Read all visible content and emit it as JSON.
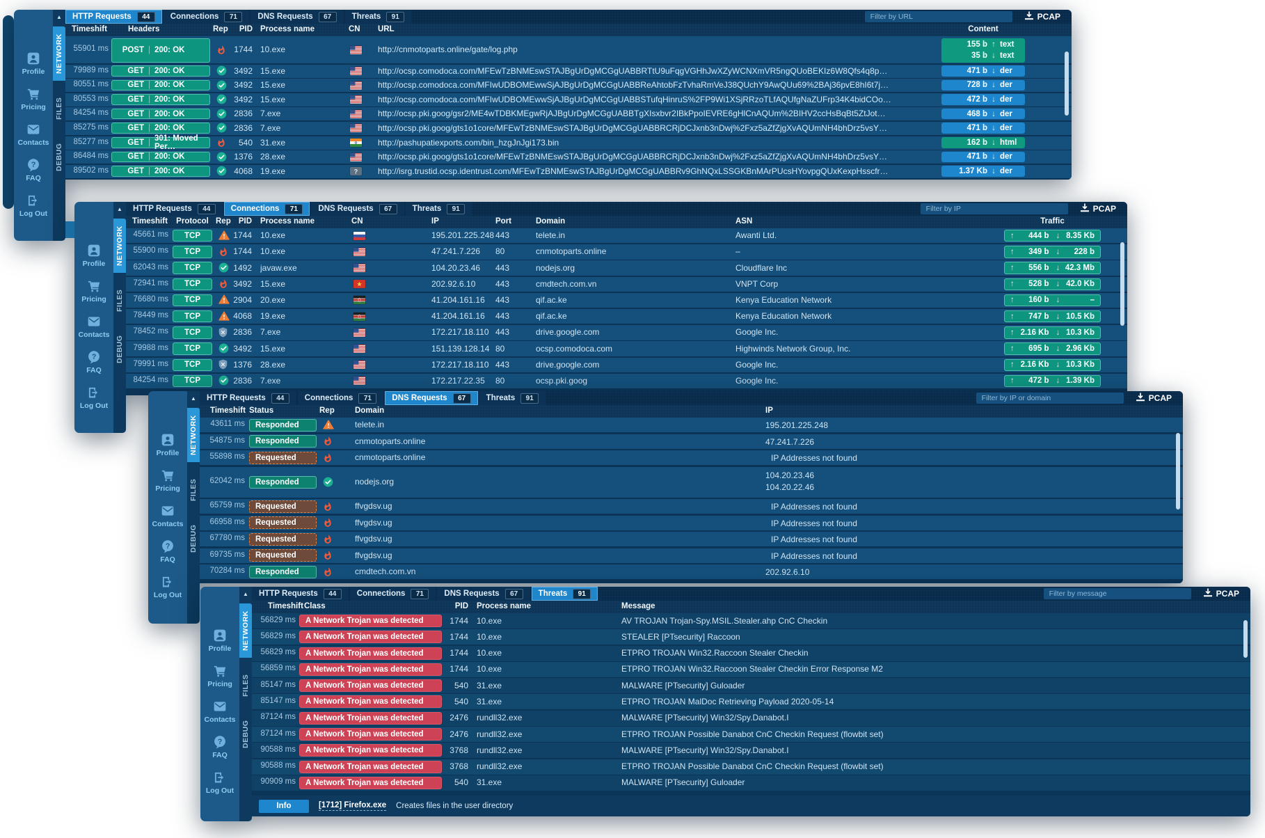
{
  "colors": {
    "accent": "#1f86cc",
    "teal": "#0e9580",
    "red": "#ce4255",
    "fire": "#f25a3c",
    "warn": "#ef7d36",
    "ok": "#1bb093",
    "shield": "#7e9fbb"
  },
  "sidebar": {
    "items": [
      {
        "id": "profile",
        "label": "Profile",
        "icon": "user-icon"
      },
      {
        "id": "pricing",
        "label": "Pricing",
        "icon": "cart-icon"
      },
      {
        "id": "contacts",
        "label": "Contacts",
        "icon": "mail-icon"
      },
      {
        "id": "faq",
        "label": "FAQ",
        "icon": "question-icon"
      },
      {
        "id": "logout",
        "label": "Log Out",
        "icon": "logout-icon"
      }
    ],
    "sections": [
      "NETWORK",
      "FILES",
      "DEBUG"
    ]
  },
  "tabs": [
    {
      "label": "HTTP Requests",
      "count": "44"
    },
    {
      "label": "Connections",
      "count": "71"
    },
    {
      "label": "DNS Requests",
      "count": "67"
    },
    {
      "label": "Threats",
      "count": "91"
    }
  ],
  "pcap_label": "PCAP",
  "panels": [
    {
      "name": "http-requests",
      "active_tab": 0,
      "filter_placeholder": "Filter by URL",
      "columns": [
        "Timeshift",
        "Headers",
        "Rep",
        "PID",
        "Process name",
        "CN",
        "URL",
        "Content"
      ],
      "rows": [
        {
          "ts": "55901 ms",
          "method": "POST",
          "status": "200: OK",
          "rep": "fire",
          "pid": "1744",
          "proc": "10.exe",
          "cn": "us",
          "url": "http://cnmotoparts.online/gate/log.php",
          "content": {
            "color": "green",
            "parts": [
              {
                "size": "155 b",
                "dir": "up",
                "type": "text"
              },
              {
                "size": "35 b",
                "dir": "down",
                "type": "text"
              }
            ]
          }
        },
        {
          "ts": "79989 ms",
          "method": "GET",
          "status": "200: OK",
          "rep": "ok",
          "pid": "3492",
          "proc": "15.exe",
          "cn": "us",
          "url": "http://ocsp.comodoca.com/MFEwTzBNMEswSTAJBgUrDgMCGgUABBRTtU9uFqgVGHhJwXZyWCNXmVR5ngQUoBEKIz6W8Qfs4q8p…",
          "content": {
            "color": "blue",
            "parts": [
              {
                "size": "471 b",
                "dir": "down",
                "type": "der"
              }
            ]
          }
        },
        {
          "ts": "80551 ms",
          "method": "GET",
          "status": "200: OK",
          "rep": "ok",
          "pid": "3492",
          "proc": "15.exe",
          "cn": "us",
          "url": "http://ocsp.comodoca.com/MFIwUDBOMEwwSjAJBgUrDgMCGgUABBReAhtobFzTvhaRmVeJ38QUchY9AwQUu69%2BAj36pvE8hI6t7j…",
          "content": {
            "color": "blue",
            "parts": [
              {
                "size": "728 b",
                "dir": "down",
                "type": "der"
              }
            ]
          }
        },
        {
          "ts": "80553 ms",
          "method": "GET",
          "status": "200: OK",
          "rep": "ok",
          "pid": "3492",
          "proc": "15.exe",
          "cn": "us",
          "url": "http://ocsp.comodoca.com/MFIwUDBOMEwwSjAJBgUrDgMCGgUABBSTufqHinruS%2FP9Wi1XSjRRzoTLfAQUfgNaZUFrp34K4bidCOo…",
          "content": {
            "color": "blue",
            "parts": [
              {
                "size": "472 b",
                "dir": "down",
                "type": "der"
              }
            ]
          }
        },
        {
          "ts": "84254 ms",
          "method": "GET",
          "status": "200: OK",
          "rep": "ok",
          "pid": "2836",
          "proc": "7.exe",
          "cn": "us",
          "url": "http://ocsp.pki.goog/gsr2/ME4wTDBKMEgwRjAJBgUrDgMCGgUABBTgXIsxbvr2IBkPpoIEVRE6gHlCnAQUm%2BIHV2ccHsBqBt5ZtJot…",
          "content": {
            "color": "blue",
            "parts": [
              {
                "size": "468 b",
                "dir": "down",
                "type": "der"
              }
            ]
          }
        },
        {
          "ts": "85275 ms",
          "method": "GET",
          "status": "200: OK",
          "rep": "ok",
          "pid": "2836",
          "proc": "7.exe",
          "cn": "us",
          "url": "http://ocsp.pki.goog/gts1o1core/MFEwTzBNMEswSTAJBgUrDgMCGgUABBRCRjDCJxnb3nDwj%2Fxz5aZfZjgXvAQUmNH4bhDrz5vsY…",
          "content": {
            "color": "blue",
            "parts": [
              {
                "size": "471 b",
                "dir": "down",
                "type": "der"
              }
            ]
          }
        },
        {
          "ts": "85277 ms",
          "method": "GET",
          "status": "301: Moved Per…",
          "rep": "fire",
          "pid": "540",
          "proc": "31.exe",
          "cn": "in",
          "url": "http://pashupatiexports.com/bin_hzgJnJgi173.bin",
          "content": {
            "color": "green",
            "parts": [
              {
                "size": "162 b",
                "dir": "down",
                "type": "html"
              }
            ]
          }
        },
        {
          "ts": "86484 ms",
          "method": "GET",
          "status": "200: OK",
          "rep": "ok",
          "pid": "1376",
          "proc": "28.exe",
          "cn": "us",
          "url": "http://ocsp.pki.goog/gts1o1core/MFEwTzBNMEswSTAJBgUrDgMCGgUABBRCRjDCJxnb3nDwj%2Fxz5aZfZjgXvAQUmNH4bhDrz5vsY…",
          "content": {
            "color": "blue",
            "parts": [
              {
                "size": "471 b",
                "dir": "down",
                "type": "der"
              }
            ]
          }
        },
        {
          "ts": "89502 ms",
          "method": "GET",
          "status": "200: OK",
          "rep": "ok",
          "pid": "4068",
          "proc": "19.exe",
          "cn": "unknown",
          "url": "http://isrg.trustid.ocsp.identrust.com/MFEwTzBNMEswSTAJBgUrDgMCGgUABBRv9GhNQxLSSGKBnMArPUcsHYovpgQUxKexpHsscfr…",
          "content": {
            "color": "blue",
            "parts": [
              {
                "size": "1.37 Kb",
                "dir": "down",
                "type": "der"
              }
            ]
          }
        }
      ]
    },
    {
      "name": "connections",
      "active_tab": 1,
      "filter_placeholder": "Filter by IP",
      "columns": [
        "Timeshift",
        "Protocol",
        "Rep",
        "PID",
        "Process name",
        "CN",
        "IP",
        "Port",
        "Domain",
        "ASN",
        "Traffic"
      ],
      "rows": [
        {
          "ts": "45661 ms",
          "proto": "TCP",
          "rep": "warn",
          "pid": "1744",
          "proc": "10.exe",
          "cn": "ru",
          "ip": "195.201.225.248",
          "port": "443",
          "domain": "telete.in",
          "asn": "Awanti Ltd.",
          "up": "444 b",
          "down": "8.35 Kb"
        },
        {
          "ts": "55900 ms",
          "proto": "TCP",
          "rep": "fire",
          "pid": "1744",
          "proc": "10.exe",
          "cn": "us",
          "ip": "47.241.7.226",
          "port": "80",
          "domain": "cnmotoparts.online",
          "asn": "–",
          "up": "349 b",
          "down": "228 b"
        },
        {
          "ts": "62043 ms",
          "proto": "TCP",
          "rep": "ok",
          "pid": "1492",
          "proc": "javaw.exe",
          "cn": "us",
          "ip": "104.20.23.46",
          "port": "443",
          "domain": "nodejs.org",
          "asn": "Cloudflare Inc",
          "up": "556 b",
          "down": "42.3 Mb"
        },
        {
          "ts": "72941 ms",
          "proto": "TCP",
          "rep": "fire",
          "pid": "3492",
          "proc": "15.exe",
          "cn": "vn",
          "ip": "202.92.6.10",
          "port": "443",
          "domain": "cmdtech.com.vn",
          "asn": "VNPT Corp",
          "up": "528 b",
          "down": "42.0 Kb"
        },
        {
          "ts": "76680 ms",
          "proto": "TCP",
          "rep": "warn",
          "pid": "2904",
          "proc": "20.exe",
          "cn": "ke",
          "ip": "41.204.161.16",
          "port": "443",
          "domain": "qif.ac.ke",
          "asn": "Kenya Education Network",
          "up": "160 b",
          "down": "–"
        },
        {
          "ts": "78449 ms",
          "proto": "TCP",
          "rep": "warn",
          "pid": "4068",
          "proc": "19.exe",
          "cn": "ke",
          "ip": "41.204.161.16",
          "port": "443",
          "domain": "qif.ac.ke",
          "asn": "Kenya Education Network",
          "up": "747 b",
          "down": "10.5 Kb"
        },
        {
          "ts": "78452 ms",
          "proto": "TCP",
          "rep": "shield",
          "pid": "2836",
          "proc": "7.exe",
          "cn": "us",
          "ip": "172.217.18.110",
          "port": "443",
          "domain": "drive.google.com",
          "asn": "Google Inc.",
          "up": "2.16 Kb",
          "down": "10.3 Kb"
        },
        {
          "ts": "79988 ms",
          "proto": "TCP",
          "rep": "ok",
          "pid": "3492",
          "proc": "15.exe",
          "cn": "us",
          "ip": "151.139.128.14",
          "port": "80",
          "domain": "ocsp.comodoca.com",
          "asn": "Highwinds Network Group, Inc.",
          "up": "695 b",
          "down": "2.96 Kb"
        },
        {
          "ts": "79991 ms",
          "proto": "TCP",
          "rep": "shield",
          "pid": "1376",
          "proc": "28.exe",
          "cn": "us",
          "ip": "172.217.18.110",
          "port": "443",
          "domain": "drive.google.com",
          "asn": "Google Inc.",
          "up": "2.16 Kb",
          "down": "10.3 Kb"
        },
        {
          "ts": "84254 ms",
          "proto": "TCP",
          "rep": "ok",
          "pid": "2836",
          "proc": "7.exe",
          "cn": "us",
          "ip": "172.217.22.35",
          "port": "80",
          "domain": "ocsp.pki.goog",
          "asn": "Google Inc.",
          "up": "472 b",
          "down": "1.39 Kb"
        }
      ]
    },
    {
      "name": "dns-requests",
      "active_tab": 2,
      "filter_placeholder": "Filter by IP or domain",
      "columns": [
        "Timeshift",
        "Status",
        "Rep",
        "Domain",
        "IP"
      ],
      "rows": [
        {
          "ts": "43611 ms",
          "status": "Responded",
          "rep": "warn",
          "domain": "telete.in",
          "ips": [
            "195.201.225.248"
          ],
          "nf": false
        },
        {
          "ts": "54875 ms",
          "status": "Responded",
          "rep": "fire",
          "domain": "cnmotoparts.online",
          "ips": [
            "47.241.7.226"
          ],
          "nf": false
        },
        {
          "ts": "55898 ms",
          "status": "Requested",
          "rep": "fire",
          "domain": "cnmotoparts.online",
          "ips": [
            "IP Addresses not found"
          ],
          "nf": true
        },
        {
          "ts": "62042 ms",
          "status": "Responded",
          "rep": "ok",
          "domain": "nodejs.org",
          "ips": [
            "104.20.23.46",
            "104.20.22.46"
          ],
          "nf": false
        },
        {
          "ts": "65759 ms",
          "status": "Requested",
          "rep": "fire",
          "domain": "ffvgdsv.ug",
          "ips": [
            "IP Addresses not found"
          ],
          "nf": true
        },
        {
          "ts": "66958 ms",
          "status": "Requested",
          "rep": "fire",
          "domain": "ffvgdsv.ug",
          "ips": [
            "IP Addresses not found"
          ],
          "nf": true
        },
        {
          "ts": "67780 ms",
          "status": "Requested",
          "rep": "fire",
          "domain": "ffvgdsv.ug",
          "ips": [
            "IP Addresses not found"
          ],
          "nf": true
        },
        {
          "ts": "69735 ms",
          "status": "Requested",
          "rep": "fire",
          "domain": "ffvgdsv.ug",
          "ips": [
            "IP Addresses not found"
          ],
          "nf": true
        },
        {
          "ts": "70284 ms",
          "status": "Responded",
          "rep": "fire",
          "domain": "cmdtech.com.vn",
          "ips": [
            "202.92.6.10"
          ],
          "nf": false
        }
      ]
    },
    {
      "name": "threats",
      "active_tab": 3,
      "filter_placeholder": "Filter by message",
      "columns": [
        "Timeshift",
        "Class",
        "PID",
        "Process name",
        "Message"
      ],
      "rows": [
        {
          "ts": "56829 ms",
          "cls": "A Network Trojan was detected",
          "pid": "1744",
          "proc": "10.exe",
          "msg": "AV TROJAN Trojan-Spy.MSIL.Stealer.ahp CnC Checkin"
        },
        {
          "ts": "56829 ms",
          "cls": "A Network Trojan was detected",
          "pid": "1744",
          "proc": "10.exe",
          "msg": "STEALER [PTsecurity] Raccoon"
        },
        {
          "ts": "56829 ms",
          "cls": "A Network Trojan was detected",
          "pid": "1744",
          "proc": "10.exe",
          "msg": "ETPRO TROJAN Win32.Raccoon Stealer Checkin"
        },
        {
          "ts": "56859 ms",
          "cls": "A Network Trojan was detected",
          "pid": "1744",
          "proc": "10.exe",
          "msg": "ETPRO TROJAN Win32.Raccoon Stealer Checkin Error Response M2"
        },
        {
          "ts": "85147 ms",
          "cls": "A Network Trojan was detected",
          "pid": "540",
          "proc": "31.exe",
          "msg": "MALWARE [PTsecurity] Guloader"
        },
        {
          "ts": "85147 ms",
          "cls": "A Network Trojan was detected",
          "pid": "540",
          "proc": "31.exe",
          "msg": "ETPRO TROJAN MalDoc Retrieving Payload 2020-05-14"
        },
        {
          "ts": "87124 ms",
          "cls": "A Network Trojan was detected",
          "pid": "2476",
          "proc": "rundll32.exe",
          "msg": "MALWARE [PTsecurity] Win32/Spy.Danabot.I"
        },
        {
          "ts": "87124 ms",
          "cls": "A Network Trojan was detected",
          "pid": "2476",
          "proc": "rundll32.exe",
          "msg": "ETPRO TROJAN Possible Danabot CnC Checkin Request (flowbit set)"
        },
        {
          "ts": "90588 ms",
          "cls": "A Network Trojan was detected",
          "pid": "3768",
          "proc": "rundll32.exe",
          "msg": "MALWARE [PTsecurity] Win32/Spy.Danabot.I"
        },
        {
          "ts": "90588 ms",
          "cls": "A Network Trojan was detected",
          "pid": "3768",
          "proc": "rundll32.exe",
          "msg": "ETPRO TROJAN Possible Danabot CnC Checkin Request (flowbit set)"
        },
        {
          "ts": "90909 ms",
          "cls": "A Network Trojan was detected",
          "pid": "540",
          "proc": "31.exe",
          "msg": "MALWARE [PTsecurity] Guloader"
        }
      ],
      "info_bar": {
        "button": "Info",
        "process": "[1712] Firefox.exe",
        "message": "Creates files in the user directory"
      }
    }
  ]
}
